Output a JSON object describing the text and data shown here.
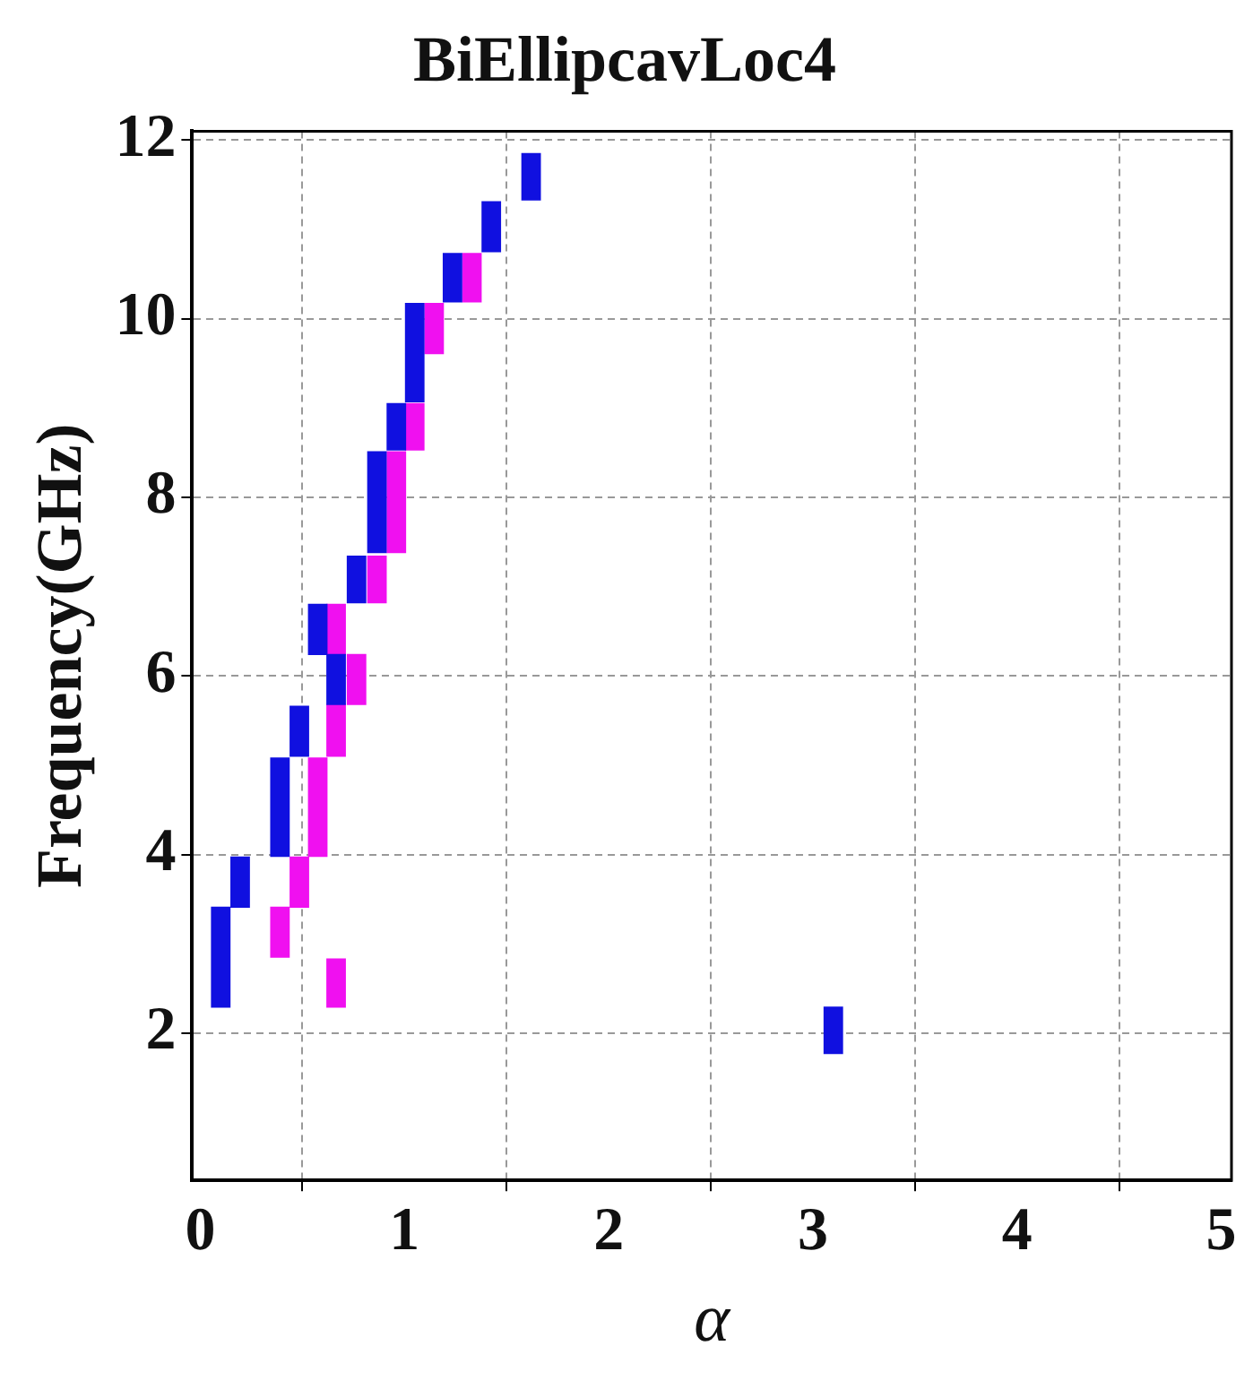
{
  "chart_data": {
    "type": "bar",
    "title": "BiEllipcavLoc4",
    "xlabel": "α",
    "ylabel": "Frequency(GHz)",
    "xlim": [
      -0.04,
      5.05
    ],
    "xticks": [
      0,
      1,
      2,
      3,
      4,
      5
    ],
    "ylim": [
      0.35,
      12.1
    ],
    "yticks": [
      2,
      4,
      6,
      8,
      10,
      12
    ],
    "grid": true,
    "legend": false,
    "series": [
      {
        "color": "#1010e0",
        "x": [
          0.1,
          0.195,
          0.39,
          0.485,
          0.575,
          0.665,
          0.765,
          0.865,
          0.96,
          1.05,
          1.235,
          1.425,
          1.62,
          3.1
        ],
        "base": [
          2.29,
          3.41,
          3.98,
          5.1,
          6.24,
          5.68,
          6.82,
          7.38,
          8.53,
          9.07,
          10.19,
          10.75,
          11.33,
          1.77
        ],
        "values": [
          1.12,
          0.56,
          1.1,
          0.56,
          0.56,
          0.56,
          0.52,
          1.13,
          0.52,
          1.1,
          0.54,
          0.56,
          0.52,
          0.52
        ]
      },
      {
        "color": "#f010f0",
        "x": [
          0.39,
          0.485,
          0.575,
          0.665,
          0.765,
          0.865,
          0.96,
          1.05,
          1.145,
          1.33
        ],
        "base": [
          2.85,
          3.41,
          3.98,
          2.29,
          5.68,
          6.82,
          7.38,
          8.53,
          9.61,
          10.19
        ],
        "values": [
          0.56,
          0.56,
          1.1,
          0.54,
          0.56,
          0.52,
          1.13,
          0.52,
          0.56,
          0.54
        ]
      },
      {
        "color": "#f010f0",
        "x": [
          0.665
        ],
        "base": [
          5.1
        ],
        "values": [
          0.58
        ]
      },
      {
        "color": "#f010f0",
        "x": [
          0.665
        ],
        "base": [
          6.24
        ],
        "values": [
          0.56
        ]
      }
    ]
  }
}
